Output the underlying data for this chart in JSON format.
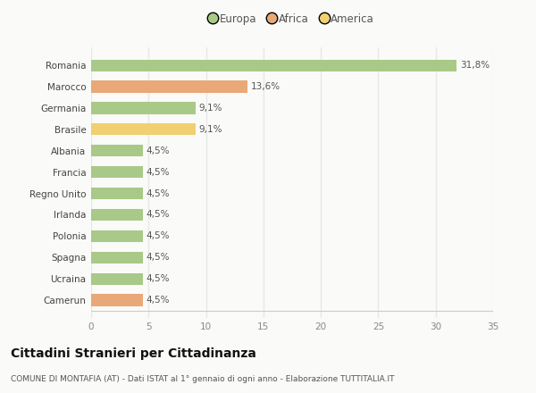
{
  "countries": [
    "Romania",
    "Marocco",
    "Germania",
    "Brasile",
    "Albania",
    "Francia",
    "Regno Unito",
    "Irlanda",
    "Polonia",
    "Spagna",
    "Ucraina",
    "Camerun"
  ],
  "values": [
    31.8,
    13.6,
    9.1,
    9.1,
    4.5,
    4.5,
    4.5,
    4.5,
    4.5,
    4.5,
    4.5,
    4.5
  ],
  "labels": [
    "31,8%",
    "13,6%",
    "9,1%",
    "9,1%",
    "4,5%",
    "4,5%",
    "4,5%",
    "4,5%",
    "4,5%",
    "4,5%",
    "4,5%",
    "4,5%"
  ],
  "continents": [
    "Europa",
    "Africa",
    "Europa",
    "America",
    "Europa",
    "Europa",
    "Europa",
    "Europa",
    "Europa",
    "Europa",
    "Europa",
    "Africa"
  ],
  "colors": {
    "Europa": "#a8c987",
    "Africa": "#e8a878",
    "America": "#f0d070"
  },
  "title": "Cittadini Stranieri per Cittadinanza",
  "subtitle": "COMUNE DI MONTAFIA (AT) - Dati ISTAT al 1° gennaio di ogni anno - Elaborazione TUTTITALIA.IT",
  "xlim": [
    0,
    35
  ],
  "xticks": [
    0,
    5,
    10,
    15,
    20,
    25,
    30,
    35
  ],
  "background_color": "#fafaf8",
  "grid_color": "#e8e8e8",
  "bar_height": 0.55
}
